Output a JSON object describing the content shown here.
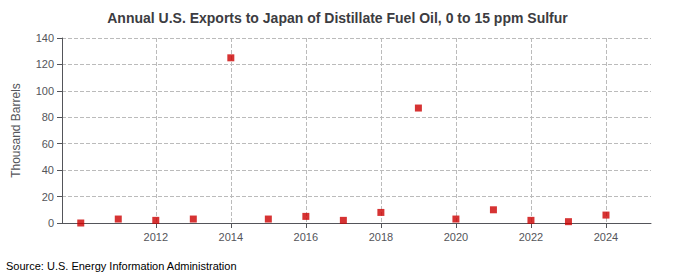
{
  "chart_data": {
    "type": "scatter",
    "title": "Annual U.S. Exports to Japan of Distillate Fuel Oil, 0 to 15 ppm Sulfur",
    "ylabel": "Thousand Barrels",
    "annotations": [
      "Source: U.S. Energy Information Administration"
    ],
    "x": [
      2010,
      2011,
      2012,
      2013,
      2014,
      2015,
      2016,
      2017,
      2018,
      2019,
      2020,
      2021,
      2022,
      2023,
      2024
    ],
    "values": [
      0,
      3,
      2,
      3,
      125,
      3,
      5,
      2,
      8,
      87,
      3,
      10,
      2,
      1,
      6
    ],
    "color": "#cc0000",
    "marker": "square",
    "xlim": [
      2009.5,
      2025.2
    ],
    "xticks": [
      2012,
      2014,
      2016,
      2018,
      2020,
      2022,
      2024
    ],
    "ylim": [
      0,
      140
    ],
    "yticks": [
      0,
      20,
      40,
      60,
      80,
      100,
      120,
      140
    ],
    "grid": true
  }
}
